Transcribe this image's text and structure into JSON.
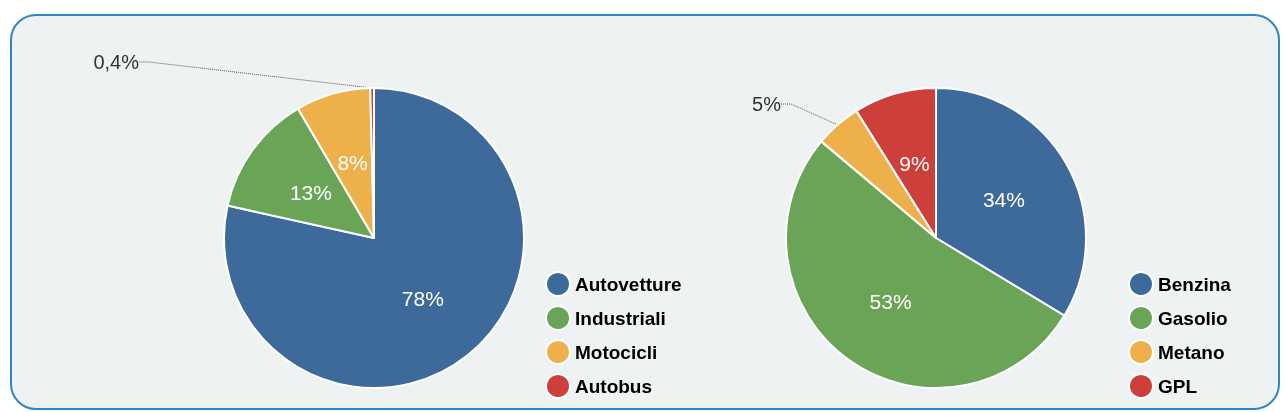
{
  "chart_data": [
    {
      "type": "pie",
      "categories": [
        "Autovetture",
        "Industriali",
        "Motocicli",
        "Autobus"
      ],
      "values": [
        78,
        13,
        8,
        0.4
      ],
      "colors": [
        "#3d6a9b",
        "#6aa457",
        "#eeb04b",
        "#cc3f3b"
      ],
      "value_labels": [
        "78%",
        "13%",
        "8%",
        "0,4%"
      ],
      "legend": "bottom right"
    },
    {
      "type": "pie",
      "categories": [
        "Benzina",
        "Gasolio",
        "Metano",
        "GPL"
      ],
      "values": [
        34,
        53,
        5,
        9
      ],
      "colors": [
        "#3d6a9b",
        "#6aa457",
        "#eeb04b",
        "#cc3f3b"
      ],
      "value_labels": [
        "34%",
        "53%",
        "5%",
        "9%"
      ],
      "legend": "bottom right"
    }
  ]
}
